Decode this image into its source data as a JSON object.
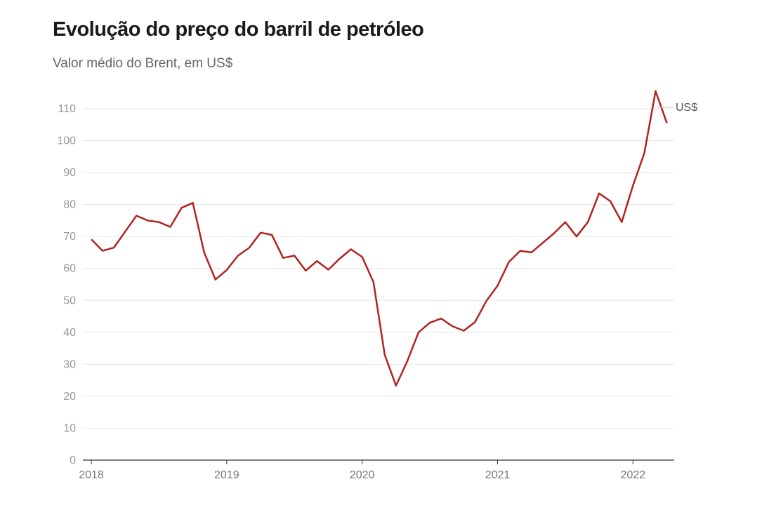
{
  "chart_data": {
    "type": "line",
    "title": "Evolução do preço do barril de petróleo",
    "subtitle": "Valor médio do Brent, em US$",
    "unit_label": "US$",
    "xlabel": "",
    "ylabel": "",
    "ylim": [
      0,
      110
    ],
    "yticks": [
      "0",
      "10",
      "20",
      "30",
      "40",
      "50",
      "60",
      "70",
      "80",
      "90",
      "100",
      "110"
    ],
    "xticks": [
      "2018",
      "2019",
      "2020",
      "2021",
      "2022"
    ],
    "grid": true,
    "color": "#b22222",
    "x_start": "2018-01",
    "frequency": "monthly",
    "x_end": "2022-04",
    "values": [
      69.1,
      65.5,
      66.5,
      71.5,
      76.5,
      75.0,
      74.5,
      73.0,
      79.0,
      80.5,
      65.0,
      56.5,
      59.5,
      64.0,
      66.5,
      71.2,
      70.5,
      63.3,
      64.0,
      59.3,
      62.3,
      59.6,
      63.0,
      66.0,
      63.6,
      55.7,
      33.0,
      23.3,
      31.0,
      40.0,
      43.0,
      44.3,
      41.9,
      40.5,
      43.2,
      49.8,
      54.6,
      62.0,
      65.5,
      65.0,
      68.0,
      71.0,
      74.5,
      70.0,
      74.5,
      83.5,
      81.0,
      74.5,
      86.0,
      96.0,
      115.5,
      105.5
    ]
  }
}
